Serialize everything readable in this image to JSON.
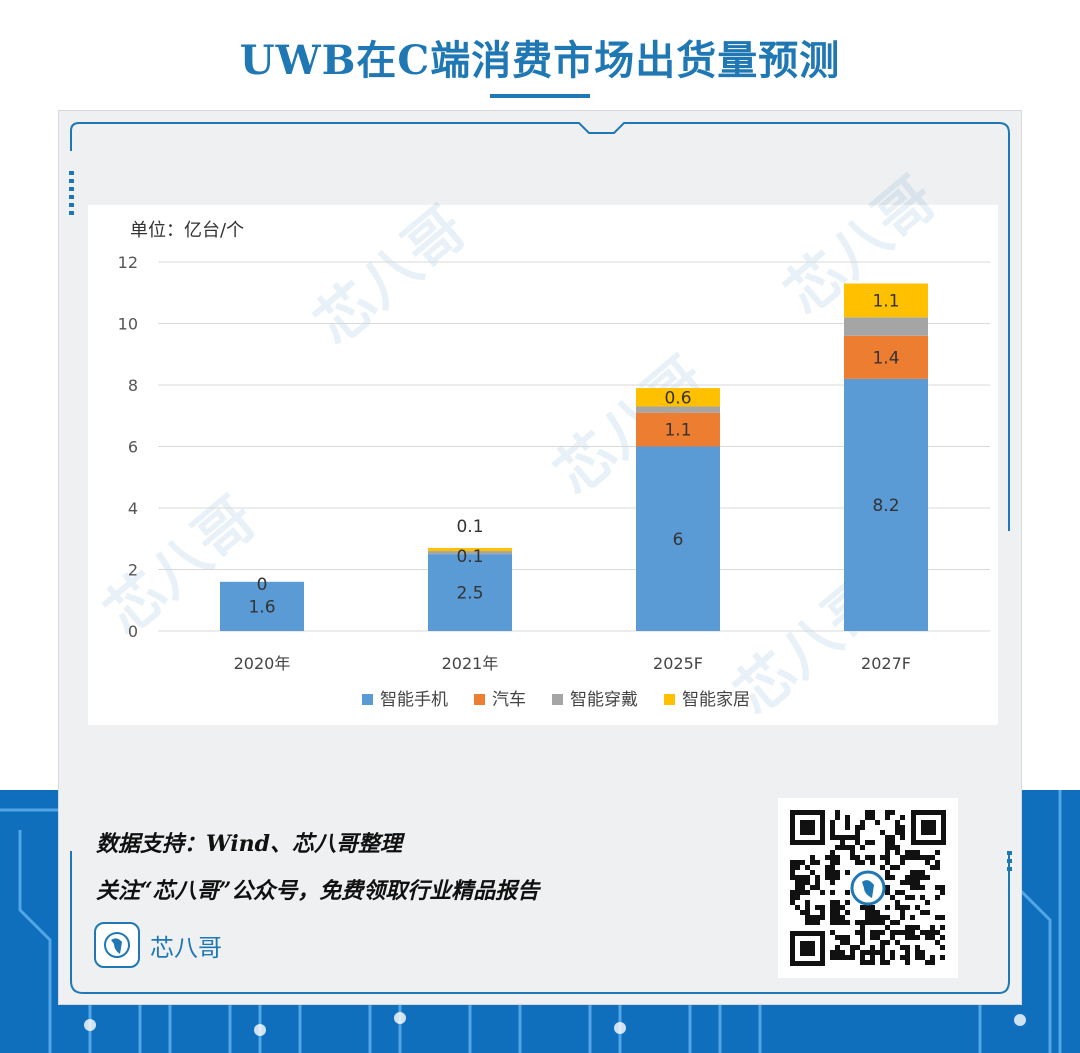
{
  "title": "UWB在C端消费市场出货量预测",
  "unit_label": "单位：亿台/个",
  "source_line": "数据支持：Wind、芯八哥整理",
  "follow_line": "关注“芯八哥”公众号，免费领取行业精品报告",
  "brand_name": "芯八哥",
  "watermark_text": "芯八哥",
  "colors": {
    "title": "#1f78b4",
    "phone": "#5b9bd5",
    "car": "#ed7d31",
    "wearable": "#a5a5a5",
    "home": "#ffc000",
    "circuit": "#0f6fbd"
  },
  "chart_data": {
    "type": "bar",
    "stacked": true,
    "categories": [
      "2020年",
      "2021年",
      "2025F",
      "2027F"
    ],
    "series": [
      {
        "name": "智能手机",
        "values": [
          1.6,
          2.5,
          6,
          8.2
        ],
        "labels": [
          "1.6",
          "2.5",
          "6",
          "8.2"
        ],
        "color": "#5b9bd5"
      },
      {
        "name": "汽车",
        "values": [
          0,
          0,
          1.1,
          1.4
        ],
        "labels": [
          "",
          "",
          "1.1",
          "1.4"
        ],
        "color": "#ed7d31"
      },
      {
        "name": "智能穿戴",
        "values": [
          0,
          0.1,
          0.2,
          0.6
        ],
        "labels": [
          "0",
          "0.1",
          "",
          ""
        ],
        "color": "#a5a5a5"
      },
      {
        "name": "智能家居",
        "values": [
          0,
          0.1,
          0.6,
          1.1
        ],
        "labels": [
          "",
          "0.1",
          "0.6",
          "1.1"
        ],
        "color": "#ffc000"
      }
    ],
    "ylim": [
      0,
      12
    ],
    "yticks": [
      0,
      2,
      4,
      6,
      8,
      10,
      12
    ],
    "grid": true,
    "legend": "bottom"
  }
}
